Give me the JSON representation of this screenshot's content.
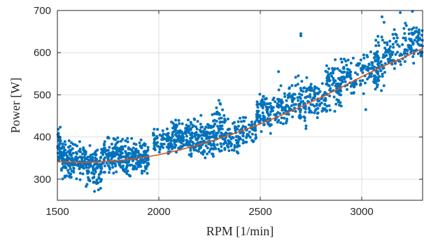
{
  "chart_data": {
    "type": "scatter",
    "title": "",
    "xlabel": "RPM [1/min]",
    "ylabel": "Power [W]",
    "xlim": [
      1500,
      3300
    ],
    "ylim": [
      250,
      700
    ],
    "xticks": [
      1500,
      2000,
      2500,
      3000
    ],
    "yticks": [
      300,
      400,
      500,
      600,
      700
    ],
    "grid": true,
    "legend": "none",
    "colors": {
      "points": "#0072BD",
      "fit": "#D95319",
      "axes": "#262626",
      "grid": "#dedede"
    },
    "fit": {
      "x": [
        1500,
        1550,
        1600,
        1650,
        1700,
        1800,
        1900,
        2000,
        2100,
        2200,
        2300,
        2400,
        2500,
        2600,
        2700,
        2800,
        2900,
        3000,
        3100,
        3200,
        3300
      ],
      "y": [
        342,
        341,
        340,
        340,
        341,
        344,
        350,
        358,
        369,
        382,
        397,
        413,
        431,
        451,
        472,
        494,
        518,
        543,
        567,
        587,
        610
      ]
    },
    "clusters": [
      {
        "x": [
          1500,
          1520
        ],
        "y": [
          310,
          440
        ],
        "n": 40
      },
      {
        "x": [
          1520,
          1580
        ],
        "y": [
          285,
          410
        ],
        "n": 90
      },
      {
        "x": [
          1580,
          1640
        ],
        "y": [
          290,
          400
        ],
        "n": 70
      },
      {
        "x": [
          1640,
          1720
        ],
        "y": [
          262,
          395
        ],
        "n": 110
      },
      {
        "x": [
          1720,
          1800
        ],
        "y": [
          300,
          420
        ],
        "n": 90
      },
      {
        "x": [
          1800,
          1880
        ],
        "y": [
          290,
          410
        ],
        "n": 100
      },
      {
        "x": [
          1880,
          1950
        ],
        "y": [
          300,
          400
        ],
        "n": 90
      },
      {
        "x": [
          1970,
          2060
        ],
        "y": [
          340,
          430
        ],
        "n": 70
      },
      {
        "x": [
          2060,
          2150
        ],
        "y": [
          340,
          460
        ],
        "n": 110
      },
      {
        "x": [
          2150,
          2260
        ],
        "y": [
          330,
          460
        ],
        "n": 140
      },
      {
        "x": [
          2260,
          2330
        ],
        "y": [
          330,
          500
        ],
        "n": 90
      },
      {
        "x": [
          2330,
          2400
        ],
        "y": [
          340,
          460
        ],
        "n": 60
      },
      {
        "x": [
          2400,
          2480
        ],
        "y": [
          360,
          480
        ],
        "n": 60
      },
      {
        "x": [
          2480,
          2560
        ],
        "y": [
          390,
          520
        ],
        "n": 80
      },
      {
        "x": [
          2560,
          2640
        ],
        "y": [
          400,
          540
        ],
        "n": 60
      },
      {
        "x": [
          2640,
          2740
        ],
        "y": [
          410,
          560
        ],
        "n": 80
      },
      {
        "x": [
          2740,
          2820
        ],
        "y": [
          420,
          560
        ],
        "n": 70
      },
      {
        "x": [
          2820,
          2900
        ],
        "y": [
          440,
          600
        ],
        "n": 90
      },
      {
        "x": [
          2900,
          2980
        ],
        "y": [
          480,
          600
        ],
        "n": 60
      },
      {
        "x": [
          2980,
          3080
        ],
        "y": [
          480,
          640
        ],
        "n": 60
      },
      {
        "x": [
          3060,
          3120
        ],
        "y": [
          500,
          660
        ],
        "n": 60
      },
      {
        "x": [
          3120,
          3200
        ],
        "y": [
          540,
          680
        ],
        "n": 50
      },
      {
        "x": [
          3200,
          3300
        ],
        "y": [
          560,
          690
        ],
        "n": 80
      }
    ],
    "outliers": [
      {
        "x": 2700,
        "y": 640
      },
      {
        "x": 2700,
        "y": 645
      },
      {
        "x": 3020,
        "y": 465
      },
      {
        "x": 2590,
        "y": 555
      },
      {
        "x": 3250,
        "y": 698
      },
      {
        "x": 3190,
        "y": 695
      },
      {
        "x": 3270,
        "y": 650
      },
      {
        "x": 3100,
        "y": 685
      },
      {
        "x": 3150,
        "y": 580
      },
      {
        "x": 3110,
        "y": 672
      }
    ]
  }
}
